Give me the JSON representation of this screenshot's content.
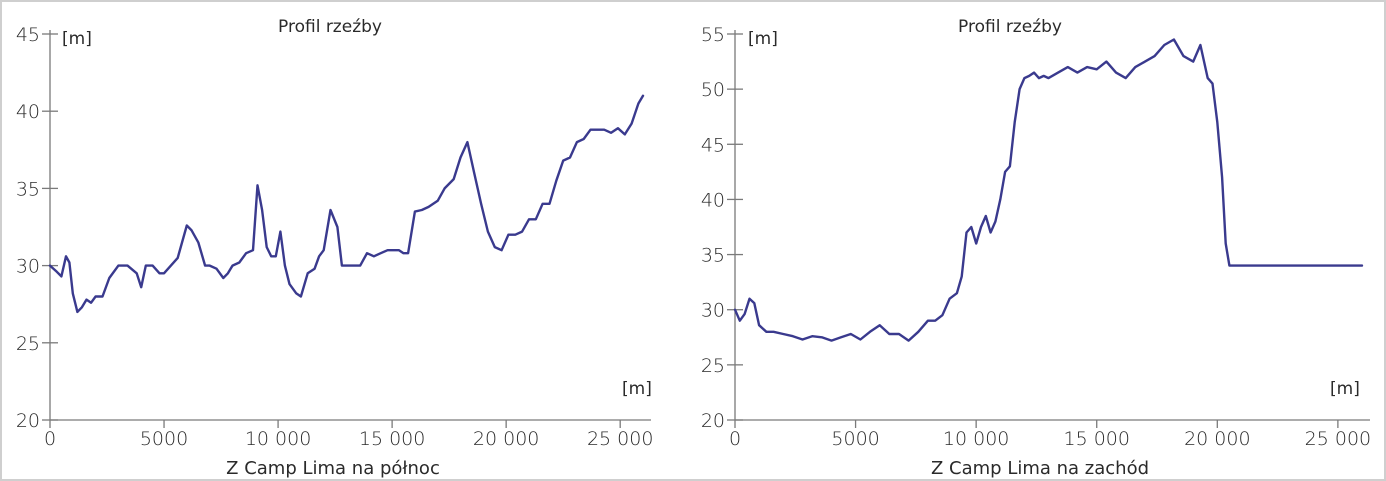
{
  "chart_data": [
    {
      "type": "line",
      "title": "Profil rzeźby",
      "xlabel": "Z Camp Lima na północ",
      "ylabel": "[m]",
      "x_unit": "[m]",
      "xlim": [
        0,
        26000
      ],
      "ylim": [
        20,
        45
      ],
      "xticks": [
        0,
        5000,
        10000,
        15000,
        20000,
        25000
      ],
      "xtick_labels": [
        "0",
        "5000",
        "10 000",
        "15 000",
        "20 000",
        "25 000"
      ],
      "yticks": [
        20,
        25,
        30,
        35,
        40,
        45
      ],
      "ytick_labels": [
        "20",
        "25",
        "30",
        "35",
        "40",
        "45"
      ],
      "grid": false,
      "color": "#3a3a8e",
      "series": [
        {
          "x": [
            0,
            300,
            500,
            700,
            850,
            1000,
            1200,
            1400,
            1600,
            1800,
            2000,
            2300,
            2600,
            3000,
            3400,
            3800,
            4000,
            4200,
            4500,
            4800,
            5000,
            5300,
            5600,
            6000,
            6200,
            6500,
            6800,
            7000,
            7300,
            7600,
            7800,
            8000,
            8300,
            8600,
            8900,
            9100,
            9300,
            9500,
            9700,
            9900,
            10100,
            10300,
            10500,
            10800,
            11000,
            11300,
            11600,
            11800,
            12000,
            12300,
            12600,
            12800,
            13000,
            13300,
            13600,
            13900,
            14200,
            14500,
            14800,
            15000,
            15300,
            15500,
            15700,
            16000,
            16300,
            16600,
            17000,
            17300,
            17700,
            18000,
            18300,
            18600,
            18900,
            19200,
            19500,
            19800,
            20100,
            20400,
            20700,
            21000,
            21300,
            21600,
            21900,
            22200,
            22500,
            22800,
            23100,
            23400,
            23700,
            24000,
            24300,
            24600,
            24900,
            25200,
            25500,
            25800,
            26000
          ],
          "y": [
            30.0,
            29.6,
            29.3,
            30.6,
            30.2,
            28.2,
            27.0,
            27.3,
            27.8,
            27.6,
            28.0,
            28.0,
            29.2,
            30.0,
            30.0,
            29.5,
            28.6,
            30.0,
            30.0,
            29.5,
            29.5,
            30.0,
            30.5,
            32.6,
            32.3,
            31.5,
            30.0,
            30.0,
            29.8,
            29.2,
            29.5,
            30.0,
            30.2,
            30.8,
            31.0,
            35.2,
            33.6,
            31.2,
            30.6,
            30.6,
            32.2,
            30.0,
            28.8,
            28.2,
            28.0,
            29.5,
            29.8,
            30.6,
            31.0,
            33.6,
            32.5,
            30.0,
            30.0,
            30.0,
            30.0,
            30.8,
            30.6,
            30.8,
            31.0,
            31.0,
            31.0,
            30.8,
            30.8,
            33.5,
            33.6,
            33.8,
            34.2,
            35.0,
            35.6,
            37.0,
            38.0,
            36.0,
            34.0,
            32.2,
            31.2,
            31.0,
            32.0,
            32.0,
            32.2,
            33.0,
            33.0,
            34.0,
            34.0,
            35.5,
            36.8,
            37.0,
            38.0,
            38.2,
            38.8,
            38.8,
            38.8,
            38.6,
            38.9,
            38.5,
            39.2,
            40.5,
            41.0
          ]
        }
      ]
    },
    {
      "type": "line",
      "title": "Profil rzeźby",
      "xlabel": "Z Camp Lima na zachód",
      "ylabel": "[m]",
      "x_unit": "[m]",
      "xlim": [
        0,
        26000
      ],
      "ylim": [
        20,
        55
      ],
      "xticks": [
        0,
        5000,
        10000,
        15000,
        20000,
        25000
      ],
      "xtick_labels": [
        "0",
        "5000",
        "10 000",
        "15 000",
        "20 000",
        "25 000"
      ],
      "yticks": [
        20,
        25,
        30,
        35,
        40,
        45,
        50,
        55
      ],
      "ytick_labels": [
        "20",
        "25",
        "30",
        "35",
        "40",
        "45",
        "50",
        "55"
      ],
      "grid": false,
      "color": "#3a3a8e",
      "series": [
        {
          "x": [
            0,
            200,
            400,
            600,
            800,
            1000,
            1300,
            1600,
            2000,
            2400,
            2800,
            3200,
            3600,
            4000,
            4400,
            4800,
            5200,
            5600,
            6000,
            6400,
            6800,
            7200,
            7600,
            8000,
            8300,
            8600,
            8900,
            9200,
            9400,
            9600,
            9800,
            10000,
            10200,
            10400,
            10600,
            10800,
            11000,
            11200,
            11400,
            11600,
            11800,
            12000,
            12200,
            12400,
            12600,
            12800,
            13000,
            13400,
            13800,
            14200,
            14600,
            15000,
            15400,
            15800,
            16200,
            16600,
            17000,
            17400,
            17800,
            18200,
            18600,
            19000,
            19300,
            19600,
            19800,
            20000,
            20200,
            20350,
            20500,
            21000,
            22000,
            23000,
            24000,
            25000,
            26000
          ],
          "y": [
            30.0,
            29.0,
            29.6,
            31.0,
            30.6,
            28.6,
            28.0,
            28.0,
            27.8,
            27.6,
            27.3,
            27.6,
            27.5,
            27.2,
            27.5,
            27.8,
            27.3,
            28.0,
            28.6,
            27.8,
            27.8,
            27.2,
            28.0,
            29.0,
            29.0,
            29.5,
            31.0,
            31.5,
            33.0,
            37.0,
            37.5,
            36.0,
            37.5,
            38.5,
            37.0,
            38.0,
            40.0,
            42.5,
            43.0,
            47.0,
            50.0,
            51.0,
            51.2,
            51.5,
            51.0,
            51.2,
            51.0,
            51.5,
            52.0,
            51.5,
            52.0,
            51.8,
            52.5,
            51.5,
            51.0,
            52.0,
            52.5,
            53.0,
            54.0,
            54.5,
            53.0,
            52.5,
            54.0,
            51.0,
            50.5,
            47.0,
            42.0,
            36.0,
            34.0,
            34.0,
            34.0,
            34.0,
            34.0,
            34.0,
            34.0
          ]
        }
      ]
    }
  ]
}
